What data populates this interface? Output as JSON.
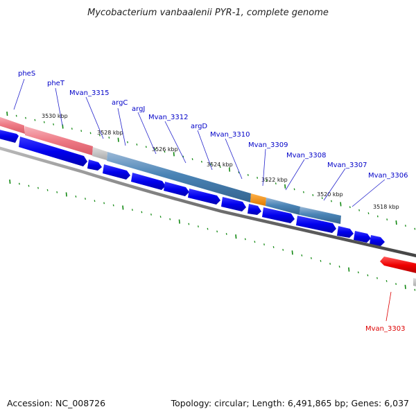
{
  "title": "Mycobacterium vanbaalenii PYR-1, complete genome",
  "footer": {
    "accession": "Accession: NC_008726",
    "summary": "Topology: circular; Length: 6,491,865 bp; Genes: 6,037"
  },
  "colors": {
    "backbone": "#7a7a7a",
    "forward_gene": "#0000ee",
    "reverse_gene": "#ee0000",
    "tick": "#118811",
    "label_forward": "#0000c8",
    "label_reverse": "#dd0000",
    "operon_blue": "#4f86b8",
    "operon_red": "#ee7a85",
    "operon_gray": "#bbbbbb",
    "operon_orange": "#f28c00"
  },
  "kbp_labels": [
    "3530 kbp",
    "3528 kbp",
    "3526 kbp",
    "3524 kbp",
    "3522 kbp",
    "3520 kbp",
    "3518 kbp"
  ],
  "gene_labels": [
    {
      "text": "pheS",
      "strand": "forward"
    },
    {
      "text": "pheT",
      "strand": "forward"
    },
    {
      "text": "Mvan_3315",
      "strand": "forward"
    },
    {
      "text": "argC",
      "strand": "forward"
    },
    {
      "text": "argJ",
      "strand": "forward"
    },
    {
      "text": "Mvan_3312",
      "strand": "forward"
    },
    {
      "text": "argD",
      "strand": "forward"
    },
    {
      "text": "Mvan_3310",
      "strand": "forward"
    },
    {
      "text": "Mvan_3309",
      "strand": "forward"
    },
    {
      "text": "Mvan_3308",
      "strand": "forward"
    },
    {
      "text": "Mvan_3307",
      "strand": "forward"
    },
    {
      "text": "Mvan_3306",
      "strand": "forward"
    },
    {
      "text": "Mvan_3303",
      "strand": "reverse"
    }
  ]
}
